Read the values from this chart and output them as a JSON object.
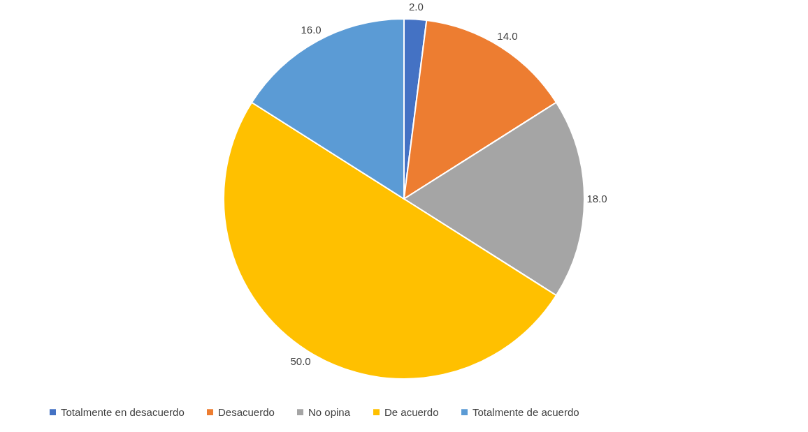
{
  "chart_data": {
    "type": "pie",
    "categories": [
      "Totalmente en desacuerdo",
      "Desacuerdo",
      "No opina",
      "De acuerdo",
      "Totalmente de acuerdo"
    ],
    "values": [
      2,
      14,
      18,
      50,
      16
    ],
    "colors": [
      "#4472c4",
      "#ed7d31",
      "#a5a5a5",
      "#ffc000",
      "#5b9bd5"
    ],
    "value_labels": [
      "2.0",
      "14.0",
      "18.0",
      "50.0",
      "16.0"
    ],
    "legend": "bottom"
  }
}
